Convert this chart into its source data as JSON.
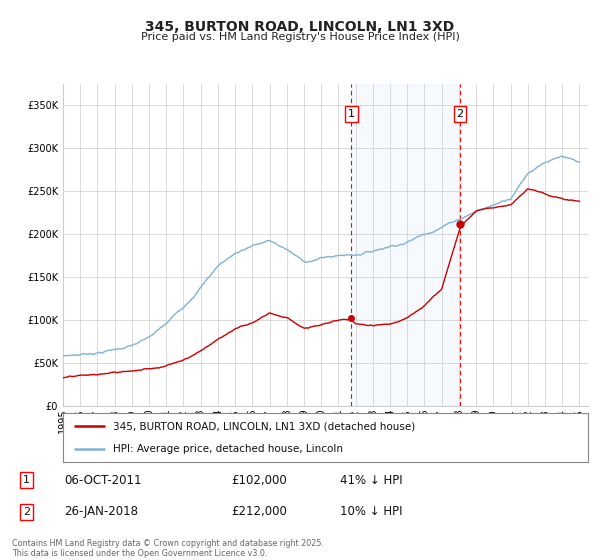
{
  "title": "345, BURTON ROAD, LINCOLN, LN1 3XD",
  "subtitle": "Price paid vs. HM Land Registry's House Price Index (HPI)",
  "ytick_values": [
    0,
    50000,
    100000,
    150000,
    200000,
    250000,
    300000,
    350000
  ],
  "ylim": [
    0,
    375000
  ],
  "xlim_start": 1995,
  "xlim_end": 2025.5,
  "sale1_date": "06-OCT-2011",
  "sale1_price": 102000,
  "sale1_pct": "41% ↓ HPI",
  "sale1_year": 2011.76,
  "sale2_date": "26-JAN-2018",
  "sale2_price": 212000,
  "sale2_pct": "10% ↓ HPI",
  "sale2_year": 2018.07,
  "legend_line1": "345, BURTON ROAD, LINCOLN, LN1 3XD (detached house)",
  "legend_line2": "HPI: Average price, detached house, Lincoln",
  "footer": "Contains HM Land Registry data © Crown copyright and database right 2025.\nThis data is licensed under the Open Government Licence v3.0.",
  "line_color_red": "#cc0000",
  "line_color_blue": "#7fb3d3",
  "shade_color": "#ddeeff",
  "bg_color": "#ffffff",
  "grid_color": "#cccccc",
  "hpi_keyframes_x": [
    1995,
    1996,
    1997,
    1998,
    1999,
    2000,
    2001,
    2002,
    2003,
    2004,
    2005,
    2006,
    2007,
    2008,
    2009,
    2010,
    2011,
    2012,
    2013,
    2014,
    2015,
    2016,
    2017,
    2018,
    2019,
    2020,
    2021,
    2022,
    2023,
    2024,
    2025
  ],
  "hpi_keyframes_y": [
    58000,
    60000,
    63000,
    67000,
    72000,
    80000,
    95000,
    115000,
    140000,
    165000,
    180000,
    190000,
    195000,
    185000,
    170000,
    175000,
    178000,
    180000,
    185000,
    192000,
    198000,
    208000,
    218000,
    228000,
    238000,
    245000,
    255000,
    285000,
    300000,
    305000,
    295000
  ],
  "red_keyframes_x": [
    1995,
    1996,
    1997,
    1998,
    1999,
    2000,
    2001,
    2002,
    2003,
    2004,
    2005,
    2006,
    2007,
    2008,
    2009,
    2010,
    2011,
    2011.76,
    2012,
    2013,
    2014,
    2015,
    2016,
    2017,
    2018.07,
    2019,
    2020,
    2021,
    2022,
    2023,
    2024,
    2025
  ],
  "red_keyframes_y": [
    33000,
    34000,
    35000,
    37000,
    39000,
    42000,
    47000,
    55000,
    66000,
    80000,
    92000,
    100000,
    113000,
    108000,
    95000,
    98000,
    102000,
    102000,
    97000,
    95000,
    98000,
    105000,
    118000,
    138000,
    212000,
    230000,
    235000,
    240000,
    260000,
    255000,
    248000,
    245000
  ]
}
